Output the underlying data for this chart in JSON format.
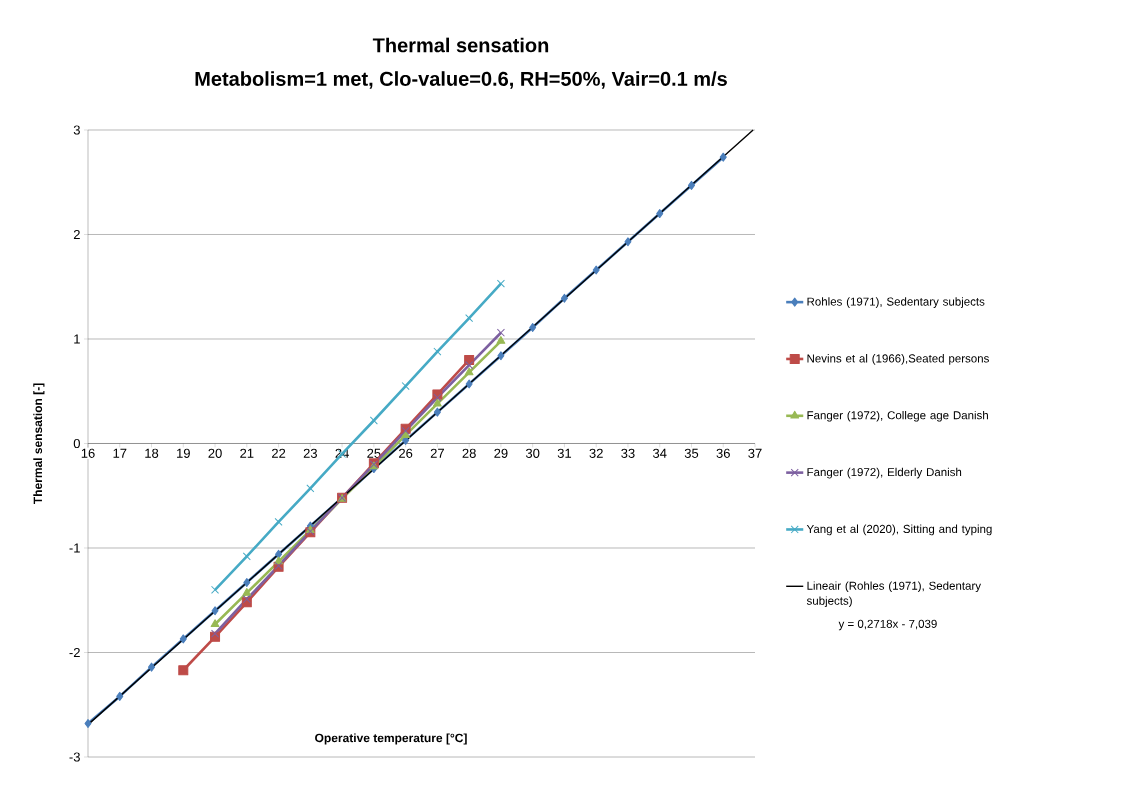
{
  "chart_data": {
    "type": "line",
    "title": "Thermal sensation",
    "subtitle": "Metabolism=1 met, Clo-value=0.6, RH=50%, Vair=0.1 m/s",
    "xlabel": "Operative temperature [°C]",
    "ylabel": "Thermal sensation [-]",
    "xlim": [
      16,
      37
    ],
    "ylim": [
      -3,
      3
    ],
    "xticks": [
      16,
      17,
      18,
      19,
      20,
      21,
      22,
      23,
      24,
      25,
      26,
      27,
      28,
      29,
      30,
      31,
      32,
      33,
      34,
      35,
      36,
      37
    ],
    "yticks": [
      -3,
      -2,
      -1,
      0,
      1,
      2,
      3
    ],
    "grid": "y",
    "legend": "right",
    "annotations": [
      "y = 0,2718x - 7,039"
    ],
    "series": [
      {
        "name": "Rohles (1971), Sedentary subjects",
        "color": "#4a7ebb",
        "marker": "diamond",
        "x": [
          16,
          17,
          18,
          19,
          20,
          21,
          22,
          23,
          24,
          25,
          26,
          27,
          28,
          29,
          30,
          31,
          32,
          33,
          34,
          35,
          36
        ],
        "values": [
          -2.68,
          -2.42,
          -2.14,
          -1.87,
          -1.6,
          -1.33,
          -1.06,
          -0.79,
          -0.52,
          -0.24,
          0.03,
          0.3,
          0.57,
          0.84,
          1.11,
          1.39,
          1.66,
          1.93,
          2.2,
          2.47,
          2.74
        ]
      },
      {
        "name": "Nevins et al (1966),Seated persons",
        "color": "#be4b48",
        "marker": "square",
        "x": [
          19,
          20,
          21,
          22,
          23,
          24,
          25,
          26,
          27,
          28
        ],
        "values": [
          -2.17,
          -1.85,
          -1.52,
          -1.18,
          -0.85,
          -0.52,
          -0.19,
          0.14,
          0.47,
          0.8
        ]
      },
      {
        "name": "Fanger (1972), College age Danish",
        "color": "#98b954",
        "marker": "triangle",
        "x": [
          20,
          21,
          22,
          23,
          24,
          25,
          26,
          27,
          28,
          29
        ],
        "values": [
          -1.73,
          -1.43,
          -1.13,
          -0.83,
          -0.53,
          -0.22,
          0.08,
          0.38,
          0.68,
          0.98
        ]
      },
      {
        "name": "Fanger (1972), Elderly Danish",
        "color": "#7d60a0",
        "marker": "cross",
        "x": [
          20,
          21,
          22,
          23,
          24,
          25,
          26,
          27,
          28,
          29
        ],
        "values": [
          -1.82,
          -1.49,
          -1.17,
          -0.84,
          -0.52,
          -0.2,
          0.12,
          0.44,
          0.75,
          1.06
        ]
      },
      {
        "name": "Yang et al (2020), Sitting and typing",
        "color": "#46aac5",
        "marker": "cross",
        "x": [
          20,
          21,
          22,
          23,
          24,
          25,
          26,
          27,
          28,
          29
        ],
        "values": [
          -1.4,
          -1.08,
          -0.75,
          -0.43,
          -0.1,
          0.22,
          0.55,
          0.88,
          1.2,
          1.53
        ]
      },
      {
        "name": "Lineair (Rohles (1971), Sedentary subjects)",
        "color": "#000000",
        "marker": "none",
        "x": [
          16,
          36.94
        ],
        "values": [
          -2.69,
          3.0
        ]
      }
    ]
  }
}
